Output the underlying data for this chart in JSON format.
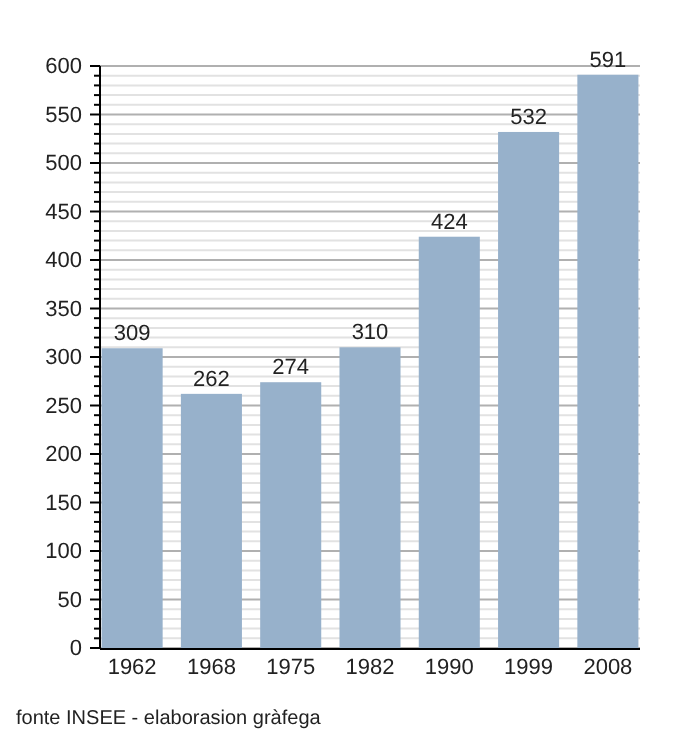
{
  "chart_data": {
    "type": "bar",
    "categories": [
      "1962",
      "1968",
      "1975",
      "1982",
      "1990",
      "1999",
      "2008"
    ],
    "values": [
      309,
      262,
      274,
      310,
      424,
      532,
      591
    ],
    "color": "#97b1cb",
    "data_labels": true,
    "ylim": [
      0,
      600
    ],
    "yticks": [
      0,
      {
        "value": 10,
        "label": null
      },
      {
        "value": 20,
        "label": null
      },
      {
        "value": 30,
        "label": null
      },
      {
        "value": 40,
        "label": null
      },
      50,
      {
        "value": 60,
        "label": null
      },
      {
        "value": 70,
        "label": null
      },
      {
        "value": 80,
        "label": null
      },
      {
        "value": 90,
        "label": null
      },
      100,
      {
        "value": 110,
        "label": null
      },
      {
        "value": 120,
        "label": null
      },
      {
        "value": 130,
        "label": null
      },
      {
        "value": 140,
        "label": null
      },
      150,
      {
        "value": 160,
        "label": null
      },
      {
        "value": 170,
        "label": null
      },
      {
        "value": 180,
        "label": null
      },
      {
        "value": 190,
        "label": null
      },
      200,
      {
        "value": 210,
        "label": null
      },
      {
        "value": 220,
        "label": null
      },
      {
        "value": 230,
        "label": null
      },
      {
        "value": 240,
        "label": null
      },
      250,
      {
        "value": 260,
        "label": null
      },
      {
        "value": 270,
        "label": null
      },
      {
        "value": 280,
        "label": null
      },
      {
        "value": 290,
        "label": null
      },
      300,
      {
        "value": 310,
        "label": null
      },
      {
        "value": 320,
        "label": null
      },
      {
        "value": 330,
        "label": null
      },
      {
        "value": 340,
        "label": null
      },
      350,
      {
        "value": 360,
        "label": null
      },
      {
        "value": 370,
        "label": null
      },
      {
        "value": 380,
        "label": null
      },
      {
        "value": 390,
        "label": null
      },
      400,
      {
        "value": 410,
        "label": null
      },
      {
        "value": 420,
        "label": null
      },
      {
        "value": 430,
        "label": null
      },
      {
        "value": 440,
        "label": null
      },
      450,
      {
        "value": 460,
        "label": null
      },
      {
        "value": 470,
        "label": null
      },
      {
        "value": 480,
        "label": null
      },
      {
        "value": 490,
        "label": null
      },
      500,
      {
        "value": 510,
        "label": null
      },
      {
        "value": 520,
        "label": null
      },
      {
        "value": 530,
        "label": null
      },
      {
        "value": 540,
        "label": null
      },
      550,
      {
        "value": 560,
        "label": null
      },
      {
        "value": 570,
        "label": null
      },
      {
        "value": 580,
        "label": null
      },
      {
        "value": 590,
        "label": null
      },
      600
    ],
    "grid": "y",
    "annotations": [
      "fonte INSEE - elaborasion gràfega"
    ]
  }
}
